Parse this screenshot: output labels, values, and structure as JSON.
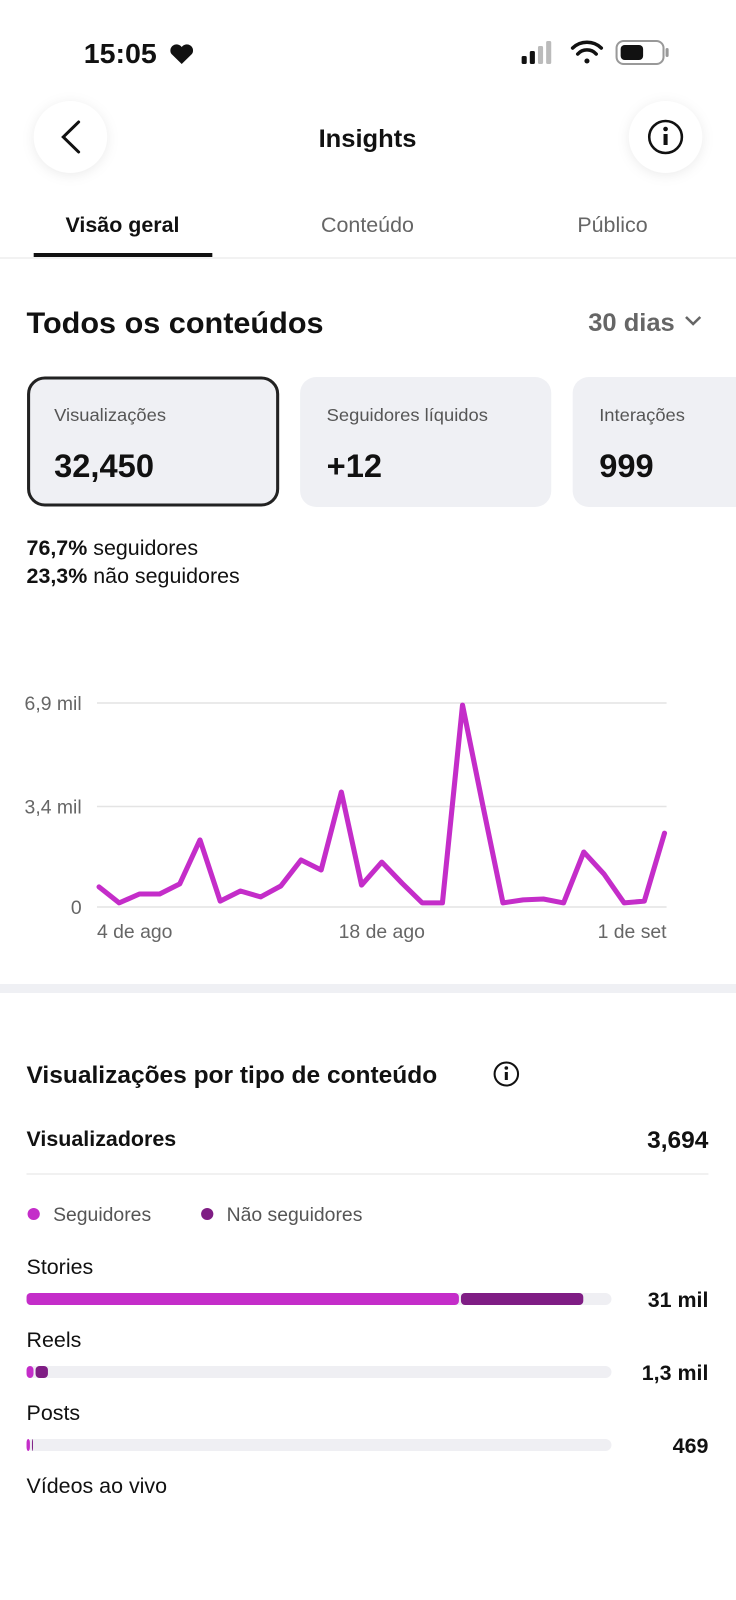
{
  "status_bar": {
    "time": "15:05"
  },
  "header": {
    "title": "Insights"
  },
  "tabs": [
    "Visão geral",
    "Conteúdo",
    "Público"
  ],
  "section": {
    "title": "Todos os conteúdos",
    "period": "30 dias"
  },
  "metrics": [
    {
      "label": "Visualizações",
      "value": "32,450"
    },
    {
      "label": "Seguidores líquidos",
      "value": "+12"
    },
    {
      "label": "Interações",
      "value": "999"
    }
  ],
  "breakdown": [
    {
      "value": "76,7%",
      "label": "seguidores"
    },
    {
      "value": "23,3%",
      "label": "não seguidores"
    }
  ],
  "content_section": {
    "title": "Visualizações por tipo de conteúdo",
    "viewers_label": "Visualizadores",
    "viewers_value": "3,694"
  },
  "chart_data": [
    {
      "type": "line",
      "color": "#c42dc9",
      "grid": true,
      "categories": [
        "4 de ago",
        null,
        null,
        null,
        null,
        null,
        null,
        null,
        null,
        null,
        null,
        null,
        null,
        null,
        "18 de ago",
        null,
        null,
        null,
        null,
        null,
        null,
        null,
        null,
        null,
        null,
        null,
        null,
        null,
        "1 de set"
      ],
      "values": [
        680,
        140,
        440,
        440,
        780,
        2270,
        200,
        540,
        340,
        710,
        1590,
        1250,
        3890,
        740,
        1520,
        810,
        140,
        140,
        6830,
        3450,
        140,
        240,
        270,
        140,
        1860,
        1120,
        140,
        200,
        2500
      ],
      "ylim": [
        0,
        6900
      ],
      "yticks": [
        0,
        {
          "value": 3400,
          "label": "3,4 mil"
        },
        {
          "value": 6900,
          "label": "6,9 mil"
        }
      ]
    },
    {
      "type": "stacked-bar",
      "categories": [
        "Stories",
        "Reels",
        "Posts",
        "Vídeos ao vivo"
      ],
      "series": [
        {
          "name": "Seguidores",
          "color": "#c42dc9",
          "values": [
            24100,
            500,
            300,
            null
          ]
        },
        {
          "name": "Não seguidores",
          "color": "#7f1d84",
          "values": [
            6900,
            800,
            169,
            null
          ]
        }
      ],
      "totals": [
        31000,
        1300,
        469,
        null
      ],
      "total_labels": [
        "31 mil",
        "1,3 mil",
        "469",
        null
      ],
      "xlim": [
        0,
        32450
      ]
    }
  ]
}
